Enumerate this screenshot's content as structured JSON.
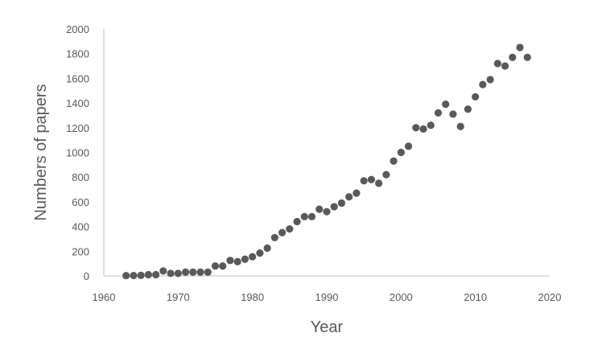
{
  "chart_data": {
    "type": "scatter",
    "title": "",
    "xlabel": "Year",
    "ylabel": "Numbers of papers",
    "xlim": [
      1960,
      2020
    ],
    "ylim": [
      0,
      2000
    ],
    "x_ticks": [
      1960,
      1970,
      1980,
      1990,
      2000,
      2010,
      2020
    ],
    "y_ticks": [
      0,
      200,
      400,
      600,
      800,
      1000,
      1200,
      1400,
      1600,
      1800,
      2000
    ],
    "grid": false,
    "legend": "none",
    "marker_color": "#595959",
    "series": [
      {
        "x": [
          1963,
          1964,
          1965,
          1966,
          1967,
          1968,
          1969,
          1970,
          1971,
          1972,
          1973,
          1974,
          1975,
          1976,
          1977,
          1978,
          1979,
          1980,
          1981,
          1982,
          1983,
          1984,
          1985,
          1986,
          1987,
          1988,
          1989,
          1990,
          1991,
          1992,
          1993,
          1994,
          1995,
          1996,
          1997,
          1998,
          1999,
          2000,
          2001,
          2002,
          2003,
          2004,
          2005,
          2006,
          2007,
          2008,
          2009,
          2010,
          2011,
          2012,
          2013,
          2014,
          2015,
          2016,
          2017
        ],
        "y": [
          2,
          3,
          4,
          10,
          10,
          40,
          20,
          20,
          30,
          30,
          30,
          30,
          80,
          80,
          125,
          115,
          135,
          155,
          185,
          225,
          310,
          350,
          380,
          440,
          480,
          480,
          540,
          520,
          560,
          590,
          640,
          670,
          770,
          780,
          750,
          820,
          930,
          1000,
          1050,
          1200,
          1190,
          1220,
          1320,
          1390,
          1310,
          1210,
          1350,
          1450,
          1550,
          1590,
          1720,
          1700,
          1770,
          1850,
          1770
        ]
      }
    ]
  }
}
